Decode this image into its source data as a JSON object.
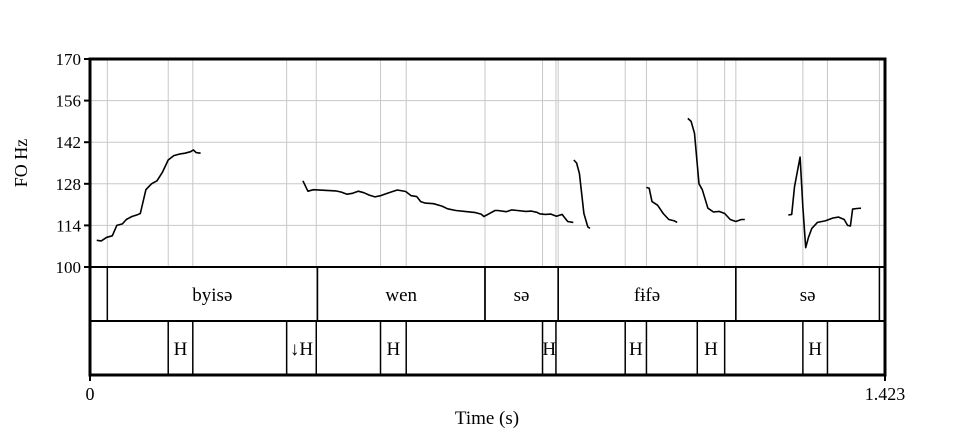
{
  "chart_data": {
    "type": "line",
    "ylabel": "FO Hz",
    "xlabel": "Time (s)",
    "xlim": [
      0,
      1.423
    ],
    "ylim": [
      100,
      170
    ],
    "yticks": [
      100,
      114,
      128,
      142,
      156,
      170
    ],
    "ytick_labels": [
      "100",
      "114",
      "128",
      "142",
      "156",
      "170"
    ],
    "xtick_labels": [
      "0",
      "1.423"
    ],
    "grid": true,
    "pitch_segments": [
      [
        [
          0.012,
          109
        ],
        [
          0.02,
          108.8
        ],
        [
          0.03,
          110
        ],
        [
          0.04,
          110.5
        ],
        [
          0.048,
          114
        ],
        [
          0.058,
          114.5
        ],
        [
          0.065,
          116
        ],
        [
          0.075,
          117
        ],
        [
          0.085,
          117.6
        ],
        [
          0.09,
          118
        ],
        [
          0.1,
          126
        ],
        [
          0.11,
          128
        ],
        [
          0.12,
          129
        ],
        [
          0.13,
          132
        ],
        [
          0.14,
          136
        ],
        [
          0.15,
          137.5
        ],
        [
          0.16,
          138
        ],
        [
          0.17,
          138.3
        ],
        [
          0.18,
          138.8
        ],
        [
          0.185,
          139.4
        ],
        [
          0.19,
          138.5
        ],
        [
          0.198,
          138.3
        ]
      ],
      [
        [
          0.381,
          129
        ],
        [
          0.39,
          125.5
        ],
        [
          0.4,
          126
        ],
        [
          0.42,
          125.8
        ],
        [
          0.44,
          125.6
        ],
        [
          0.45,
          125.2
        ],
        [
          0.46,
          124.5
        ],
        [
          0.47,
          124.8
        ],
        [
          0.48,
          125.5
        ],
        [
          0.49,
          125
        ],
        [
          0.5,
          124.2
        ],
        [
          0.51,
          123.6
        ],
        [
          0.52,
          124
        ],
        [
          0.535,
          125
        ],
        [
          0.55,
          125.9
        ],
        [
          0.565,
          125.4
        ],
        [
          0.575,
          124
        ],
        [
          0.585,
          123.7
        ],
        [
          0.592,
          122
        ],
        [
          0.6,
          121.5
        ],
        [
          0.615,
          121.3
        ],
        [
          0.63,
          120.5
        ],
        [
          0.64,
          119.6
        ],
        [
          0.655,
          119
        ],
        [
          0.675,
          118.6
        ],
        [
          0.69,
          118.3
        ],
        [
          0.7,
          117.8
        ],
        [
          0.705,
          117
        ],
        [
          0.712,
          117.7
        ],
        [
          0.725,
          119
        ],
        [
          0.73,
          119
        ],
        [
          0.745,
          118.6
        ],
        [
          0.755,
          119.2
        ],
        [
          0.765,
          119
        ],
        [
          0.78,
          118.7
        ],
        [
          0.79,
          118.8
        ],
        [
          0.8,
          118.4
        ],
        [
          0.805,
          117.9
        ],
        [
          0.815,
          117.7
        ],
        [
          0.825,
          117.8
        ],
        [
          0.835,
          117.1
        ],
        [
          0.845,
          117.7
        ],
        [
          0.85,
          116.5
        ],
        [
          0.855,
          115.3
        ],
        [
          0.865,
          115
        ]
      ],
      [
        [
          0.866,
          136
        ],
        [
          0.871,
          135
        ],
        [
          0.876,
          131.5
        ],
        [
          0.884,
          118
        ],
        [
          0.891,
          113.5
        ],
        [
          0.895,
          113
        ]
      ],
      [
        [
          0.996,
          126.8
        ],
        [
          1.001,
          126.5
        ],
        [
          1.006,
          122
        ],
        [
          1.016,
          120.8
        ],
        [
          1.026,
          118
        ],
        [
          1.036,
          116
        ],
        [
          1.046,
          115.5
        ],
        [
          1.051,
          115
        ]
      ],
      [
        [
          1.07,
          150
        ],
        [
          1.076,
          149
        ],
        [
          1.082,
          145
        ],
        [
          1.09,
          128
        ],
        [
          1.096,
          126
        ],
        [
          1.106,
          119.8
        ],
        [
          1.116,
          118.5
        ],
        [
          1.126,
          118.7
        ],
        [
          1.136,
          118
        ],
        [
          1.146,
          116
        ],
        [
          1.156,
          115.3
        ],
        [
          1.166,
          116
        ],
        [
          1.172,
          116
        ]
      ],
      [
        [
          1.25,
          117.5
        ],
        [
          1.256,
          117.7
        ],
        [
          1.261,
          127
        ],
        [
          1.268,
          134
        ],
        [
          1.271,
          137
        ],
        [
          1.276,
          120
        ],
        [
          1.281,
          106.5
        ],
        [
          1.286,
          110
        ],
        [
          1.292,
          113
        ],
        [
          1.302,
          115
        ],
        [
          1.316,
          115.5
        ],
        [
          1.33,
          116.5
        ],
        [
          1.34,
          116.8
        ],
        [
          1.35,
          116
        ],
        [
          1.356,
          114
        ],
        [
          1.361,
          113.8
        ],
        [
          1.365,
          119.5
        ],
        [
          1.373,
          119.7
        ],
        [
          1.38,
          119.8
        ]
      ]
    ],
    "word_tier": [
      {
        "start": 0.031,
        "end": 0.407,
        "label": "byisə"
      },
      {
        "start": 0.407,
        "end": 0.707,
        "label": "wen"
      },
      {
        "start": 0.707,
        "end": 0.838,
        "label": "sə"
      },
      {
        "start": 0.838,
        "end": 1.156,
        "label": "fɨfə"
      },
      {
        "start": 1.156,
        "end": 1.413,
        "label": "sə"
      }
    ],
    "tone_tier": [
      {
        "start": 0.14,
        "end": 0.184,
        "label": "H"
      },
      {
        "start": 0.352,
        "end": 0.405,
        "label": "↓H"
      },
      {
        "start": 0.52,
        "end": 0.566,
        "label": "H"
      },
      {
        "start": 0.81,
        "end": 0.834,
        "label": "H"
      },
      {
        "start": 0.958,
        "end": 0.996,
        "label": "H"
      },
      {
        "start": 1.087,
        "end": 1.136,
        "label": "H"
      },
      {
        "start": 1.276,
        "end": 1.32,
        "label": "H"
      }
    ],
    "vertical_gridlines": [
      0.031,
      0.14,
      0.184,
      0.352,
      0.405,
      0.52,
      0.566,
      0.707,
      0.81,
      0.834,
      0.838,
      0.958,
      0.996,
      1.087,
      1.136,
      1.156,
      1.276,
      1.32,
      1.413
    ]
  }
}
